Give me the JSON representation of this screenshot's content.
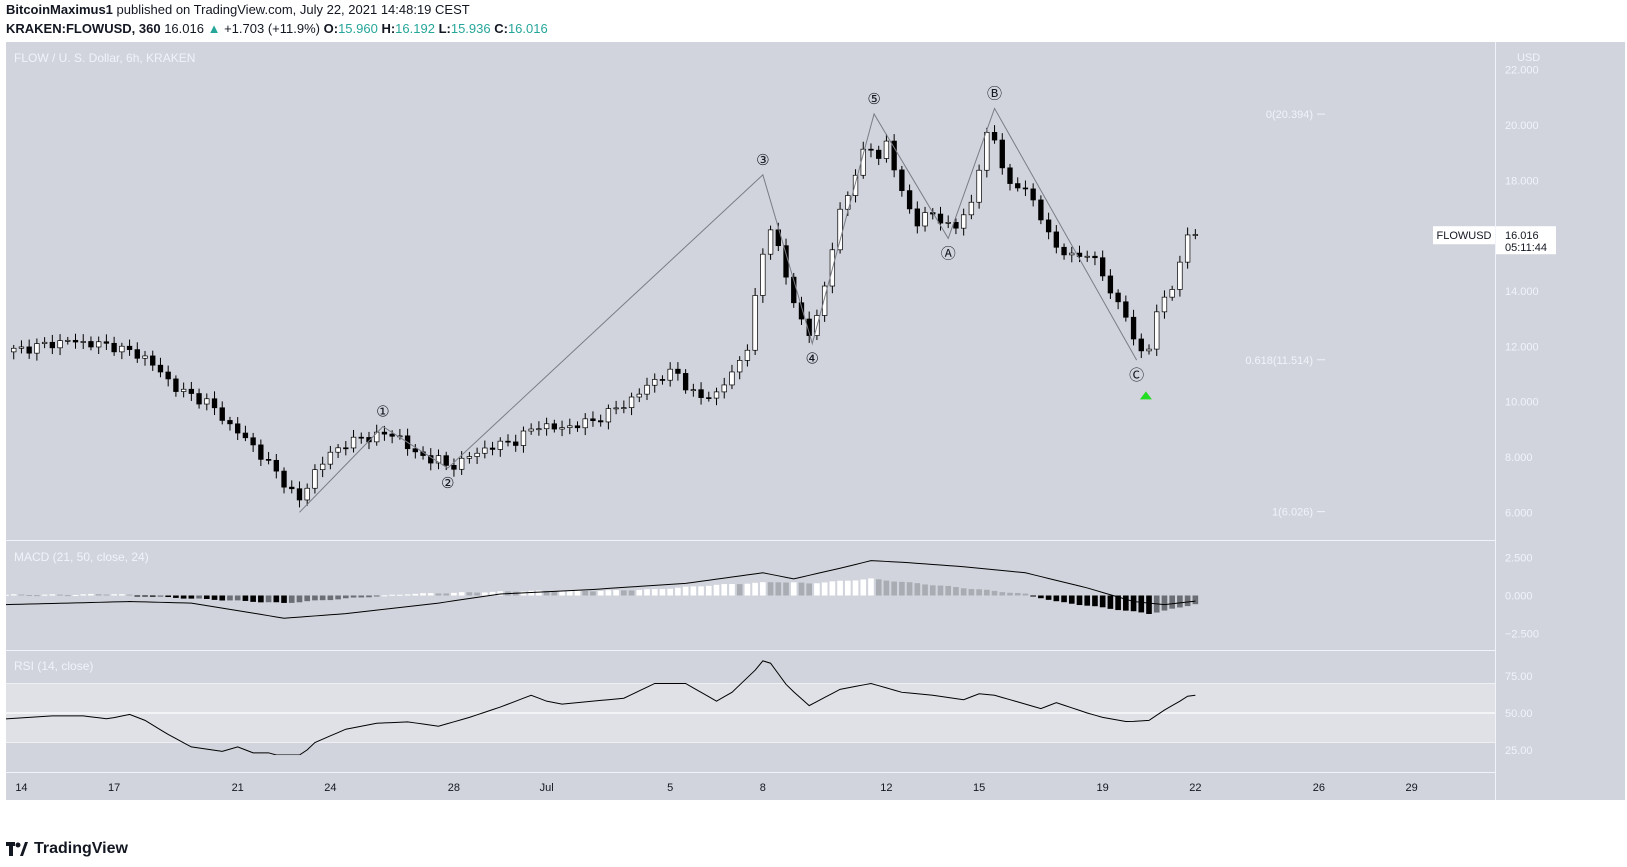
{
  "header": {
    "publisher": "BitcoinMaximus1",
    "published_text": "published on TradingView.com, July 22, 2021 14:48:19 CEST",
    "symbol": "KRAKEN:FLOWUSD, 360",
    "last": "16.016",
    "change_arrow": "▲",
    "change": "+1.703 (+11.9%)",
    "o_label": "O:",
    "o": "15.960",
    "h_label": "H:",
    "h": "16.192",
    "l_label": "L:",
    "l": "15.936",
    "c_label": "C:",
    "c": "16.016"
  },
  "footer": {
    "brand": "TradingView"
  },
  "colors": {
    "pane_bg": "#d1d4dc",
    "up": "#ffffff",
    "down": "#000000",
    "accent": "#26a69a",
    "arrow": "#22dd22"
  },
  "chart_data": [
    {
      "type": "candlestick",
      "title": "FLOW / U. S. Dollar, 6h, KRAKEN",
      "currency_label": "USD",
      "ylim": [
        5.0,
        23.0
      ],
      "yticks": [
        "6.000",
        "8.000",
        "10.000",
        "12.000",
        "14.000",
        "16.000",
        "18.000",
        "20.000",
        "22.000"
      ],
      "ytick_values": [
        6,
        8,
        10,
        12,
        14,
        16,
        18,
        20,
        22
      ],
      "x_ticks": [
        "14",
        "17",
        "21",
        "24",
        "28",
        "Jul",
        "5",
        "8",
        "12",
        "15",
        "19",
        "22",
        "26",
        "29"
      ],
      "x_tick_days": [
        13.5,
        16.5,
        20.5,
        23.5,
        27.5,
        30.5,
        34.5,
        37.5,
        41.5,
        44.5,
        48.5,
        51.5,
        55.5,
        58.5
      ],
      "day_start": 13,
      "day_end": 61.2,
      "close_key_points": [
        [
          13,
          11.8
        ],
        [
          15,
          12.2
        ],
        [
          16.5,
          12.0
        ],
        [
          17.5,
          11.6
        ],
        [
          18.6,
          10.4
        ],
        [
          19.5,
          10.0
        ],
        [
          20.2,
          9.2
        ],
        [
          21,
          8.4
        ],
        [
          22,
          7.1
        ],
        [
          22.5,
          6.4
        ],
        [
          23,
          7.5
        ],
        [
          23.5,
          8.1
        ],
        [
          24,
          8.5
        ],
        [
          25,
          8.8
        ],
        [
          25.7,
          8.8
        ],
        [
          26.2,
          8.1
        ],
        [
          27,
          7.9
        ],
        [
          27.3,
          7.6
        ],
        [
          28.5,
          8.3
        ],
        [
          29.5,
          8.6
        ],
        [
          30.3,
          9.2
        ],
        [
          30.8,
          9.0
        ],
        [
          32,
          9.3
        ],
        [
          33,
          9.9
        ],
        [
          33.5,
          10.3
        ],
        [
          34,
          10.8
        ],
        [
          34.7,
          11.1
        ],
        [
          35,
          10.6
        ],
        [
          35.4,
          10.1
        ],
        [
          36,
          10.3
        ],
        [
          36.5,
          11.0
        ],
        [
          37,
          12.0
        ],
        [
          37.3,
          14.0
        ],
        [
          37.6,
          16.0
        ],
        [
          37.8,
          16.5
        ],
        [
          38,
          15.5
        ],
        [
          38.3,
          14.3
        ],
        [
          38.6,
          13.3
        ],
        [
          38.9,
          12.6
        ],
        [
          39.1,
          12.3
        ],
        [
          39.5,
          14.2
        ],
        [
          39.9,
          16.5
        ],
        [
          40.3,
          17.6
        ],
        [
          40.6,
          18.7
        ],
        [
          40.9,
          19.3
        ],
        [
          41.2,
          18.7
        ],
        [
          41.5,
          19.4
        ],
        [
          42,
          17.5
        ],
        [
          42.5,
          16.5
        ],
        [
          43,
          16.8
        ],
        [
          43.7,
          16.2
        ],
        [
          44.3,
          17.3
        ],
        [
          44.7,
          19.6
        ],
        [
          45,
          19.5
        ],
        [
          45.5,
          17.7
        ],
        [
          46,
          17.8
        ],
        [
          46.5,
          16.6
        ],
        [
          47,
          15.6
        ],
        [
          47.5,
          15.2
        ],
        [
          48,
          15.4
        ],
        [
          48.4,
          14.8
        ],
        [
          48.8,
          13.9
        ],
        [
          49.3,
          13.0
        ],
        [
          49.6,
          11.8
        ],
        [
          50,
          12.0
        ],
        [
          50.4,
          13.7
        ],
        [
          50.9,
          14.4
        ],
        [
          51.3,
          16.3
        ],
        [
          51.6,
          16.0
        ]
      ],
      "last_price": "16.016",
      "last_symbol": "FLOWUSD",
      "countdown": "05:11:44",
      "wave_points": [
        [
          22.5,
          6.0
        ],
        [
          25.2,
          9.1
        ],
        [
          27.3,
          7.6
        ],
        [
          37.5,
          18.2
        ],
        [
          39.1,
          12.1
        ],
        [
          41.1,
          20.4
        ],
        [
          43.5,
          15.9
        ],
        [
          45.0,
          20.6
        ],
        [
          49.6,
          11.5
        ]
      ],
      "wave_labels": [
        {
          "label": "①",
          "day": 25.2,
          "price": 9.1,
          "pos": "above"
        },
        {
          "label": "②",
          "day": 27.3,
          "price": 7.6,
          "pos": "below"
        },
        {
          "label": "③",
          "day": 37.5,
          "price": 18.2,
          "pos": "above"
        },
        {
          "label": "④",
          "day": 39.1,
          "price": 12.1,
          "pos": "below"
        },
        {
          "label": "⑤",
          "day": 41.1,
          "price": 20.4,
          "pos": "above"
        },
        {
          "label": "Ⓐ",
          "day": 43.5,
          "price": 15.9,
          "pos": "below"
        },
        {
          "label": "Ⓑ",
          "day": 45.0,
          "price": 20.6,
          "pos": "above"
        },
        {
          "label": "Ⓒ",
          "day": 49.6,
          "price": 11.5,
          "pos": "below"
        }
      ],
      "fib_levels": [
        {
          "label": "0(20.394)",
          "price": 20.394
        },
        {
          "label": "0.618(11.514)",
          "price": 11.514
        },
        {
          "label": "1(6.026)",
          "price": 6.026
        }
      ],
      "signal_arrow": {
        "day": 49.9,
        "price": 10.3
      }
    },
    {
      "type": "histogram",
      "title": "MACD (21, 50, close, 24)",
      "ylim": [
        -3.6,
        3.6
      ],
      "yticks": [
        "2.500",
        "0.000",
        "−2.500"
      ],
      "ytick_values": [
        2.5,
        0,
        -2.5
      ],
      "macd_key_points": [
        [
          13,
          -0.6
        ],
        [
          17,
          -0.4
        ],
        [
          19,
          -0.5
        ],
        [
          22,
          -1.5
        ],
        [
          24,
          -1.2
        ],
        [
          27,
          -0.5
        ],
        [
          29,
          0.1
        ],
        [
          32,
          0.4
        ],
        [
          35,
          0.8
        ],
        [
          37.5,
          1.5
        ],
        [
          38.5,
          1.1
        ],
        [
          40,
          1.8
        ],
        [
          41,
          2.3
        ],
        [
          42,
          2.2
        ],
        [
          44,
          1.9
        ],
        [
          46,
          1.5
        ],
        [
          48,
          0.5
        ],
        [
          49.5,
          -0.4
        ],
        [
          50.5,
          -0.6
        ],
        [
          51.8,
          -0.3
        ]
      ],
      "hist_key_points": [
        [
          13,
          0.05
        ],
        [
          15,
          0.05
        ],
        [
          16.5,
          0.1
        ],
        [
          18,
          -0.1
        ],
        [
          20,
          -0.3
        ],
        [
          22,
          -0.5
        ],
        [
          24,
          -0.2
        ],
        [
          26,
          0.1
        ],
        [
          28,
          0.2
        ],
        [
          30,
          0.3
        ],
        [
          32,
          0.3
        ],
        [
          34,
          0.4
        ],
        [
          36,
          0.7
        ],
        [
          38,
          0.9
        ],
        [
          39,
          0.8
        ],
        [
          41,
          1.1
        ],
        [
          42,
          0.9
        ],
        [
          44,
          0.5
        ],
        [
          46,
          0.1
        ],
        [
          47,
          -0.4
        ],
        [
          48.5,
          -0.8
        ],
        [
          50,
          -1.2
        ],
        [
          51,
          -0.8
        ],
        [
          51.8,
          -0.4
        ]
      ]
    },
    {
      "type": "line",
      "title": "RSI (14, close)",
      "ylim": [
        10,
        92
      ],
      "yticks": [
        "75.00",
        "50.00",
        "25.00"
      ],
      "ytick_values": [
        75,
        50,
        25
      ],
      "band": [
        30,
        70
      ],
      "rsi_key_points": [
        [
          13,
          46
        ],
        [
          14.5,
          48
        ],
        [
          15.5,
          48
        ],
        [
          16.3,
          46
        ],
        [
          17,
          49
        ],
        [
          17.5,
          45
        ],
        [
          18.2,
          36
        ],
        [
          19,
          27
        ],
        [
          20,
          24
        ],
        [
          20.5,
          27
        ],
        [
          21,
          23
        ],
        [
          21.5,
          23
        ],
        [
          22,
          20
        ],
        [
          22.5,
          20
        ],
        [
          23,
          30
        ],
        [
          24,
          39
        ],
        [
          25,
          43
        ],
        [
          26,
          44
        ],
        [
          27,
          41
        ],
        [
          28,
          47
        ],
        [
          29,
          54
        ],
        [
          30,
          62
        ],
        [
          30.5,
          58
        ],
        [
          31,
          56
        ],
        [
          32,
          58
        ],
        [
          33,
          60
        ],
        [
          34,
          70
        ],
        [
          35,
          70
        ],
        [
          36,
          58
        ],
        [
          36.5,
          64
        ],
        [
          37.3,
          80
        ],
        [
          37.6,
          88
        ],
        [
          38.3,
          68
        ],
        [
          39,
          55
        ],
        [
          40,
          66
        ],
        [
          41,
          70
        ],
        [
          42,
          64
        ],
        [
          43,
          62
        ],
        [
          44,
          59
        ],
        [
          44.5,
          63
        ],
        [
          45,
          62
        ],
        [
          46,
          56
        ],
        [
          46.5,
          53
        ],
        [
          47,
          57
        ],
        [
          48,
          50
        ],
        [
          48.5,
          47
        ],
        [
          49.3,
          44
        ],
        [
          50,
          45
        ],
        [
          50.5,
          52
        ],
        [
          51,
          58
        ],
        [
          51.3,
          62
        ],
        [
          51.6,
          62
        ]
      ]
    }
  ]
}
